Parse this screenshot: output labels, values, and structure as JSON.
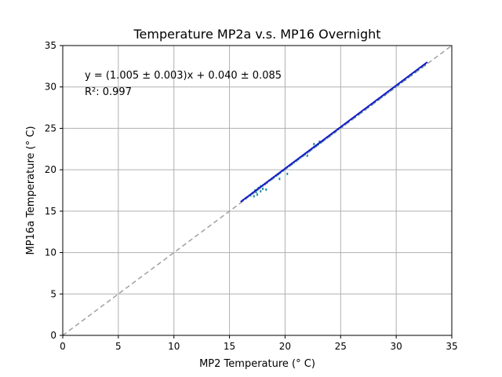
{
  "chart_data": {
    "type": "scatter",
    "title": "Temperature MP2a v.s. MP16 Overnight",
    "xlabel": "MP2 Temperature (° C)",
    "ylabel": "MP16a Temperature (° C)",
    "xlim": [
      0,
      35
    ],
    "ylim": [
      0,
      35
    ],
    "xticks": [
      "0",
      "5",
      "10",
      "15",
      "20",
      "25",
      "30",
      "35"
    ],
    "yticks": [
      "0",
      "5",
      "10",
      "15",
      "20",
      "25",
      "30",
      "35"
    ],
    "grid": true,
    "annotations": [
      "y = (1.005 ± 0.003)x + 0.040 ± 0.085",
      "R²: 0.997"
    ],
    "colors": {
      "points": "#1f8fa0",
      "fit_line": "#1a1ac8",
      "reference_line": "#a0a0a0",
      "grid": "#b0b0b0"
    },
    "series": [
      {
        "kind": "points",
        "x": [
          16.2,
          16.5,
          16.9,
          17.1,
          17.3,
          17.5,
          17.6,
          17.8,
          18.0,
          18.2,
          18.4,
          18.6,
          18.8,
          19.0,
          19.2,
          19.4,
          19.6,
          19.8,
          20.0,
          20.2,
          20.4,
          20.6,
          20.8,
          21.0,
          21.2,
          21.4,
          21.6,
          21.8,
          22.0,
          22.2,
          22.4,
          22.6,
          22.8,
          23.0,
          23.2,
          23.4,
          23.6,
          23.8,
          24.0,
          24.2,
          24.5,
          24.8,
          25.1,
          25.4,
          25.7,
          26.0,
          26.3,
          26.6,
          26.9,
          27.2,
          27.5,
          27.8,
          28.1,
          28.4,
          28.7,
          29.0,
          29.3,
          29.6,
          29.9,
          30.2,
          30.5,
          30.8,
          31.1,
          31.4,
          31.7,
          32.0,
          32.3,
          32.6,
          17.2,
          17.5,
          17.8,
          18.0,
          20.2,
          19.5,
          22.0,
          21.8,
          23.1,
          22.6,
          18.3,
          17.4
        ],
        "y": [
          16.3,
          16.6,
          16.9,
          17.2,
          17.5,
          17.6,
          17.8,
          18.0,
          18.1,
          18.3,
          18.5,
          18.7,
          18.9,
          19.1,
          19.3,
          19.5,
          19.7,
          19.9,
          20.1,
          20.3,
          20.5,
          20.7,
          20.9,
          21.1,
          21.3,
          21.5,
          21.7,
          21.9,
          22.1,
          22.3,
          22.5,
          22.7,
          22.9,
          23.1,
          23.3,
          23.5,
          23.7,
          23.9,
          24.1,
          24.3,
          24.6,
          24.9,
          25.2,
          25.5,
          25.8,
          26.1,
          26.4,
          26.7,
          27.0,
          27.3,
          27.6,
          27.9,
          28.2,
          28.5,
          28.8,
          29.1,
          29.4,
          29.7,
          30.0,
          30.3,
          30.6,
          30.9,
          31.2,
          31.5,
          31.8,
          32.1,
          32.4,
          32.7,
          16.8,
          17.0,
          17.4,
          17.7,
          19.5,
          18.9,
          21.7,
          21.9,
          23.4,
          23.1,
          17.6,
          17.3
        ]
      },
      {
        "kind": "fit_line",
        "x": [
          16.0,
          32.8
        ],
        "y": [
          16.12,
          33.0
        ]
      },
      {
        "kind": "reference_line",
        "x": [
          0,
          35
        ],
        "y": [
          0,
          35
        ]
      }
    ]
  }
}
